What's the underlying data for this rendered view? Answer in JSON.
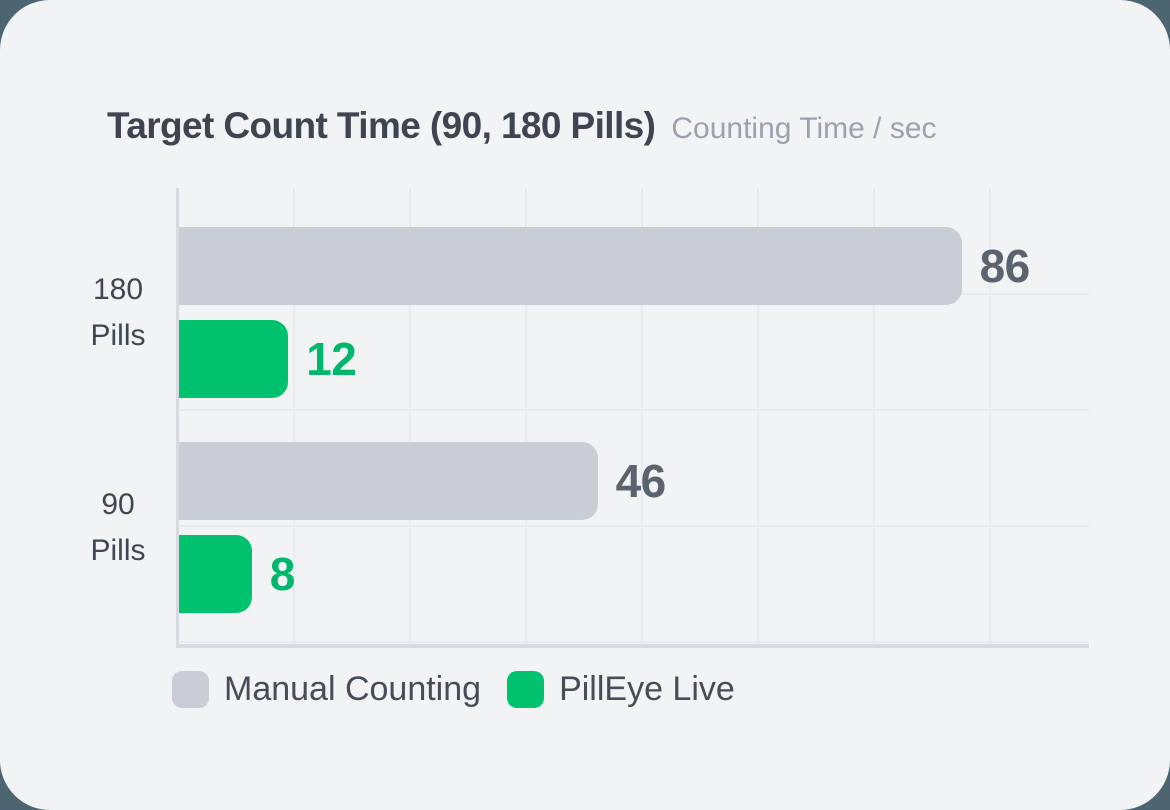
{
  "colors": {
    "page_bg": "#4d6570",
    "card_bg": "#f2f3f5",
    "grid": "#e7eaee",
    "axis": "#d7dbe1",
    "title": "#3e4551",
    "subtitle": "#99a2ae",
    "category_label": "#3e4754",
    "legend_label": "#454d59",
    "bar_gray": "#c9cdd5",
    "bar_green": "#00c16d",
    "value_gray": "#5b636e",
    "value_green": "#00b76b"
  },
  "chart_data": {
    "type": "bar",
    "orientation": "horizontal",
    "title": "Target Count Time (90, 180 Pills)",
    "subtitle": "Counting Time / sec",
    "unit": "sec",
    "categories": [
      "180 Pills",
      "90 Pills"
    ],
    "series": [
      {
        "name": "Manual Counting",
        "values": [
          86,
          46
        ],
        "color": "#c9cdd5",
        "value_color": "#5b636e"
      },
      {
        "name": "PillEye Live",
        "values": [
          12,
          8
        ],
        "color": "#00c16d",
        "value_color": "#00b76b"
      }
    ],
    "xlim": [
      0,
      100
    ],
    "grid": true,
    "legend_position": "bottom"
  }
}
